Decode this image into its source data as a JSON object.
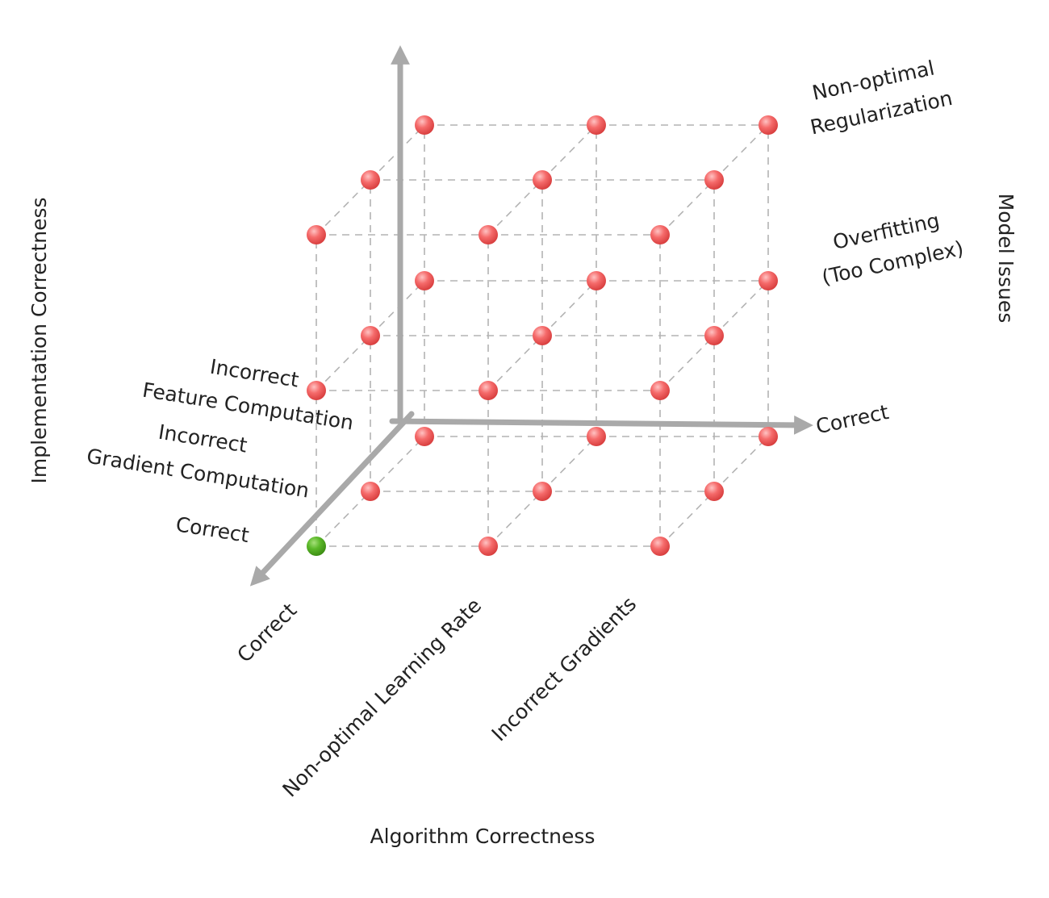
{
  "axes": {
    "implementation": {
      "title": "Implementation Correctness",
      "levels": [
        "Correct",
        "Incorrect Gradient Computation",
        "Incorrect Feature Computation"
      ]
    },
    "algorithm": {
      "title": "Algorithm Correctness",
      "levels": [
        "Correct",
        "Non-optimal Learning Rate",
        "Incorrect Gradients"
      ]
    },
    "model": {
      "title": "Model Issues",
      "levels": [
        "Correct",
        "Overfitting (Too Complex)",
        "Non-optimal Regularization"
      ]
    }
  },
  "labels": {
    "impl_correct": "Correct",
    "impl_gradient_l1": "Incorrect",
    "impl_gradient_l2": "Gradient Computation",
    "impl_feature_l1": "Incorrect",
    "impl_feature_l2": "Feature Computation",
    "alg_correct": "Correct",
    "alg_learning_rate": "Non-optimal Learning Rate",
    "alg_gradients": "Incorrect Gradients",
    "model_correct": "Correct",
    "model_overfit_l1": "Overfitting",
    "model_overfit_l2": "(Too Complex)",
    "model_reg_l1": "Non-optimal",
    "model_reg_l2": "Regularization"
  },
  "colors": {
    "point": "#f25b5b",
    "point_highlight": "#ffc2c2",
    "point_ok": "#4fa81e",
    "point_ok_highlight": "#a6e07a",
    "axis": "#a9a9a9",
    "grid": "#b3b3b3"
  },
  "highlight_point": {
    "implementation": 0,
    "algorithm": 0,
    "model": 0,
    "meaning": "all correct"
  }
}
